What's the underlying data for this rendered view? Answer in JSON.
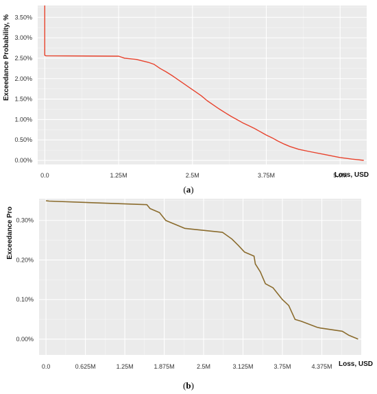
{
  "chart_data": [
    {
      "panel": "(a)",
      "type": "line",
      "ylabel": "Exceedance Probability, %",
      "xlabel": "Loss, USD",
      "x_ticks": [
        {
          "value": 0,
          "label": "0.0"
        },
        {
          "value": 1.25,
          "label": "1.25M"
        },
        {
          "value": 2.5,
          "label": "2.5M"
        },
        {
          "value": 3.75,
          "label": "3.75M"
        },
        {
          "value": 5.0,
          "label": "5.0M"
        }
      ],
      "y_ticks": [
        {
          "value": 0,
          "label": "0.00%"
        },
        {
          "value": 0.5,
          "label": "0.50%"
        },
        {
          "value": 1.0,
          "label": "1.00%"
        },
        {
          "value": 1.5,
          "label": "1.50%"
        },
        {
          "value": 2.0,
          "label": "2.00%"
        },
        {
          "value": 2.5,
          "label": "2.50%"
        },
        {
          "value": 3.0,
          "label": "3.00%"
        },
        {
          "value": 3.5,
          "label": "3.50%"
        }
      ],
      "xlim": [
        -0.12,
        5.45
      ],
      "ylim": [
        -0.1,
        3.79
      ],
      "grid": true,
      "line_color": "#e8412b",
      "series": [
        {
          "x": [
            0,
            0,
            0.02,
            1.25,
            1.35,
            1.55,
            1.75,
            1.85,
            1.95,
            2.05,
            2.15,
            2.25,
            2.35,
            2.45,
            2.55,
            2.65,
            2.75,
            2.85,
            2.95,
            3.05,
            3.15,
            3.25,
            3.35,
            3.45,
            3.55,
            3.65,
            3.75,
            3.85,
            3.95,
            4.05,
            4.15,
            4.3,
            4.5,
            4.75,
            5.0,
            5.2,
            5.4
          ],
          "y": [
            3.79,
            2.57,
            2.56,
            2.55,
            2.5,
            2.47,
            2.4,
            2.35,
            2.25,
            2.17,
            2.08,
            1.98,
            1.88,
            1.78,
            1.68,
            1.58,
            1.46,
            1.36,
            1.26,
            1.17,
            1.08,
            1.0,
            0.92,
            0.85,
            0.78,
            0.7,
            0.62,
            0.55,
            0.47,
            0.4,
            0.34,
            0.27,
            0.21,
            0.14,
            0.07,
            0.03,
            0.0
          ]
        }
      ]
    },
    {
      "panel": "(b)",
      "type": "line",
      "ylabel": "Exceedance Pro",
      "xlabel": "Loss, USD",
      "x_ticks": [
        {
          "value": 0,
          "label": "0.0"
        },
        {
          "value": 0.625,
          "label": "0.625M"
        },
        {
          "value": 1.25,
          "label": "1.25M"
        },
        {
          "value": 1.875,
          "label": "1.875M"
        },
        {
          "value": 2.5,
          "label": "2.5M"
        },
        {
          "value": 3.125,
          "label": "3.125M"
        },
        {
          "value": 3.75,
          "label": "3.75M"
        },
        {
          "value": 4.375,
          "label": "4.375M"
        }
      ],
      "y_ticks": [
        {
          "value": 0,
          "label": "0.00%"
        },
        {
          "value": 0.1,
          "label": "0.10%"
        },
        {
          "value": 0.2,
          "label": "0.20%"
        },
        {
          "value": 0.3,
          "label": "0.30%"
        }
      ],
      "xlim": [
        -0.11,
        5.0
      ],
      "ylim": [
        -0.04,
        0.355
      ],
      "grid": true,
      "line_color": "#8a6b2c",
      "series": [
        {
          "x": [
            0,
            0.05,
            1.6,
            1.65,
            1.8,
            1.9,
            2.05,
            2.2,
            2.8,
            2.95,
            3.05,
            3.15,
            3.3,
            3.32,
            3.4,
            3.48,
            3.6,
            3.75,
            3.85,
            3.95,
            4.05,
            4.3,
            4.35,
            4.7,
            4.8,
            4.95
          ],
          "y": [
            0.35,
            0.349,
            0.34,
            0.33,
            0.32,
            0.3,
            0.29,
            0.28,
            0.27,
            0.253,
            0.237,
            0.22,
            0.21,
            0.19,
            0.17,
            0.14,
            0.13,
            0.1,
            0.085,
            0.05,
            0.045,
            0.03,
            0.028,
            0.02,
            0.01,
            0.0
          ]
        }
      ]
    }
  ],
  "captions": {
    "a": {
      "prefix": "(",
      "letter": "a",
      "suffix": ")"
    },
    "b": {
      "prefix": "(",
      "letter": "b",
      "suffix": ")"
    }
  }
}
